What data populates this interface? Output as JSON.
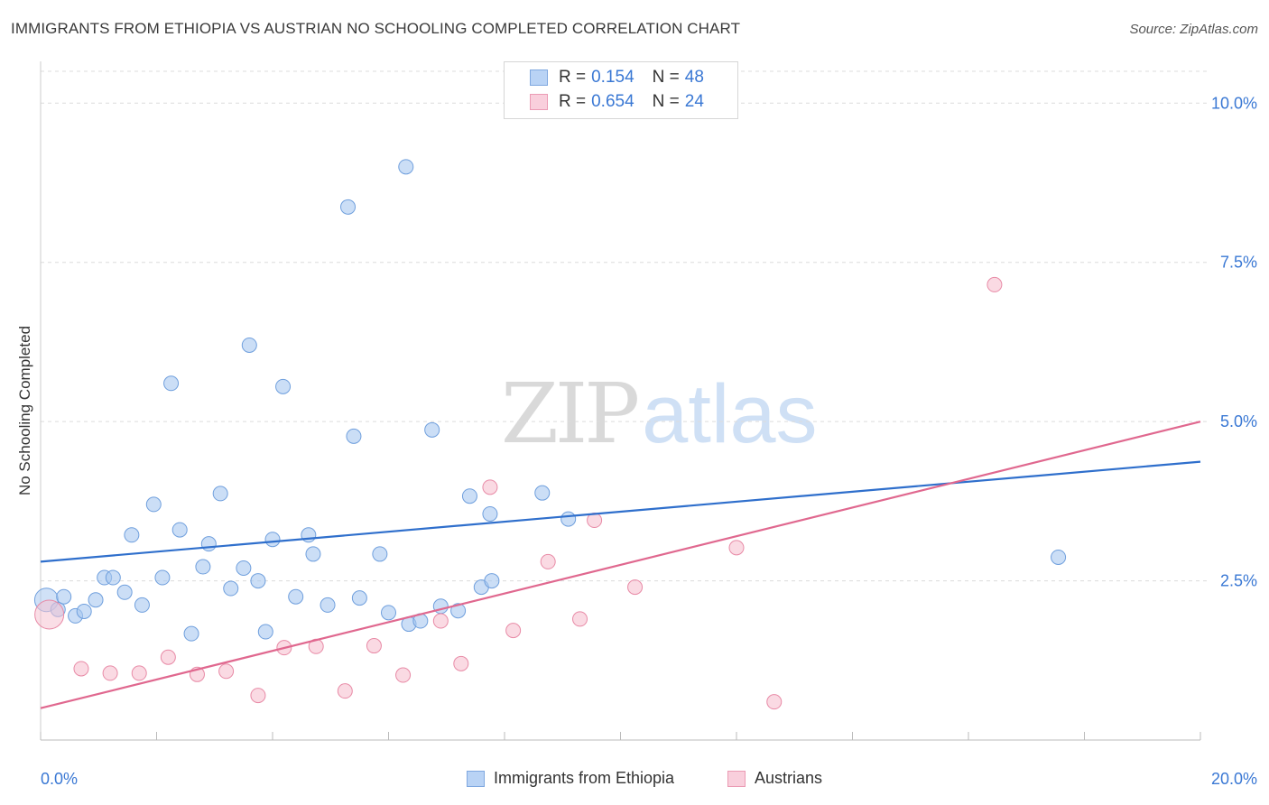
{
  "title": "IMMIGRANTS FROM ETHIOPIA VS AUSTRIAN NO SCHOOLING COMPLETED CORRELATION CHART",
  "source": "Source: ZipAtlas.com",
  "watermark": {
    "zip": "ZIP",
    "atlas": "atlas"
  },
  "legend": {
    "rows": [
      {
        "r_label": "R =",
        "r_value": "0.154",
        "n_label": "N =",
        "n_value": "48"
      },
      {
        "r_label": "R =",
        "r_value": "0.654",
        "n_label": "N =",
        "n_value": "24"
      }
    ]
  },
  "chart_data": {
    "type": "scatter",
    "ylabel": "No Schooling Completed",
    "xlim": [
      0,
      20
    ],
    "ylim": [
      0,
      10.5
    ],
    "x_ticks": [
      "0.0%",
      "20.0%"
    ],
    "y_ticks": [
      {
        "value": 2.5,
        "label": "2.5%"
      },
      {
        "value": 5.0,
        "label": "5.0%"
      },
      {
        "value": 7.5,
        "label": "7.5%"
      },
      {
        "value": 10.0,
        "label": "10.0%"
      }
    ],
    "grid": true,
    "legend_position": "top-center",
    "series": [
      {
        "name": "Immigrants from Ethiopia",
        "color": "#a9c8f0",
        "edge": "#6f9fdd",
        "line_color": "#2f6fcc",
        "trend": [
          [
            0,
            2.8
          ],
          [
            20,
            4.37
          ]
        ],
        "points": [
          [
            0.1,
            2.2
          ],
          [
            0.3,
            2.05
          ],
          [
            0.4,
            2.25
          ],
          [
            0.6,
            1.95
          ],
          [
            0.75,
            2.02
          ],
          [
            0.95,
            2.2
          ],
          [
            1.1,
            2.55
          ],
          [
            1.25,
            2.55
          ],
          [
            1.45,
            2.32
          ],
          [
            1.57,
            3.22
          ],
          [
            1.75,
            2.12
          ],
          [
            1.95,
            3.7
          ],
          [
            2.1,
            2.55
          ],
          [
            2.25,
            5.6
          ],
          [
            2.4,
            3.3
          ],
          [
            2.6,
            1.67
          ],
          [
            2.8,
            2.72
          ],
          [
            2.9,
            3.08
          ],
          [
            3.1,
            3.87
          ],
          [
            3.28,
            2.38
          ],
          [
            3.5,
            2.7
          ],
          [
            3.6,
            6.2
          ],
          [
            3.75,
            2.5
          ],
          [
            3.88,
            1.7
          ],
          [
            4.0,
            3.15
          ],
          [
            4.18,
            5.55
          ],
          [
            4.4,
            2.25
          ],
          [
            4.62,
            3.22
          ],
          [
            4.7,
            2.92
          ],
          [
            4.95,
            2.12
          ],
          [
            5.3,
            8.37
          ],
          [
            5.4,
            4.77
          ],
          [
            5.5,
            2.23
          ],
          [
            5.85,
            2.92
          ],
          [
            6.0,
            2.0
          ],
          [
            6.3,
            9.0
          ],
          [
            6.35,
            1.82
          ],
          [
            6.55,
            1.87
          ],
          [
            6.75,
            4.87
          ],
          [
            6.9,
            2.1
          ],
          [
            7.2,
            2.03
          ],
          [
            7.4,
            3.83
          ],
          [
            7.6,
            2.4
          ],
          [
            7.75,
            3.55
          ],
          [
            7.78,
            2.5
          ],
          [
            8.65,
            3.88
          ],
          [
            9.1,
            3.47
          ],
          [
            17.55,
            2.87
          ]
        ]
      },
      {
        "name": "Austrians",
        "color": "#f6c2d1",
        "edge": "#e88aa6",
        "line_color": "#e0688f",
        "trend": [
          [
            0,
            0.5
          ],
          [
            20,
            5.0
          ]
        ],
        "points": [
          [
            0.15,
            1.97
          ],
          [
            0.7,
            1.12
          ],
          [
            1.2,
            1.05
          ],
          [
            1.7,
            1.05
          ],
          [
            2.2,
            1.3
          ],
          [
            2.7,
            1.03
          ],
          [
            3.2,
            1.08
          ],
          [
            3.75,
            0.7
          ],
          [
            4.2,
            1.45
          ],
          [
            4.75,
            1.47
          ],
          [
            5.25,
            0.77
          ],
          [
            5.75,
            1.48
          ],
          [
            6.25,
            1.02
          ],
          [
            6.9,
            1.87
          ],
          [
            7.25,
            1.2
          ],
          [
            7.75,
            3.97
          ],
          [
            8.15,
            1.72
          ],
          [
            8.75,
            2.8
          ],
          [
            9.3,
            1.9
          ],
          [
            9.55,
            3.45
          ],
          [
            10.25,
            2.4
          ],
          [
            12.0,
            3.02
          ],
          [
            12.65,
            0.6
          ],
          [
            16.45,
            7.15
          ]
        ]
      }
    ]
  }
}
